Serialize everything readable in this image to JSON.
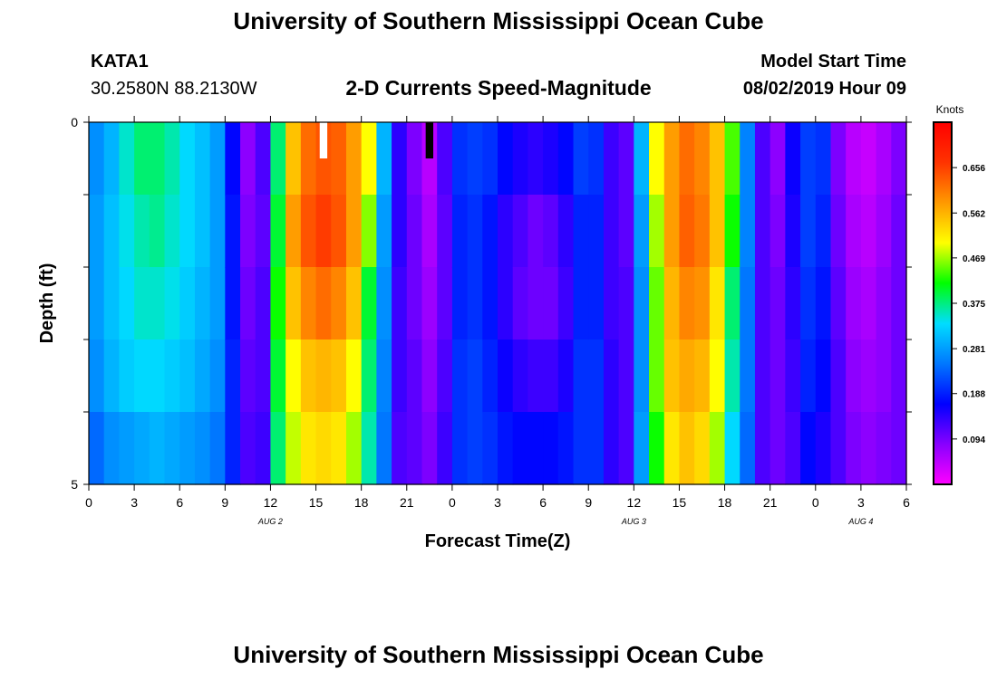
{
  "header": {
    "title": "University of Southern Mississippi Ocean Cube",
    "station": "KATA1",
    "coords": "30.2580N 88.2130W",
    "subtitle": "2-D Currents Speed-Magnitude",
    "model_label": "Model Start Time",
    "model_time": "08/02/2019 Hour 09"
  },
  "footer": {
    "title": "University of Southern Mississippi Ocean Cube"
  },
  "colors": {
    "scale": [
      "#ff00ff",
      "#8800ff",
      "#0000ff",
      "#0077ff",
      "#00ddff",
      "#00ff00",
      "#ffff00",
      "#ff9900",
      "#ff3300",
      "#ff0000"
    ],
    "missing_white": "#ffffff",
    "missing_black": "#000000"
  },
  "chart_data": {
    "type": "heatmap",
    "title": "2-D Currents Speed-Magnitude",
    "xlabel": "Forecast Time(Z)",
    "ylabel": "Depth (ft)",
    "x_tick_labels": [
      "0",
      "3",
      "6",
      "9",
      "12",
      "15",
      "18",
      "21",
      "0",
      "3",
      "6",
      "9",
      "12",
      "15",
      "18",
      "21",
      "0",
      "3",
      "6"
    ],
    "date_labels": [
      {
        "text": "AUG 2",
        "hour": 12
      },
      {
        "text": "AUG 3",
        "hour": 36
      },
      {
        "text": "AUG 4",
        "hour": 51
      }
    ],
    "y_tick_labels": [
      "0",
      "5"
    ],
    "xlim": [
      0,
      54
    ],
    "ylim": [
      0,
      5
    ],
    "depth_levels": [
      0,
      1,
      2,
      3,
      4,
      5
    ],
    "colorbar": {
      "unit": "Knots",
      "min": 0.0,
      "max": 0.75,
      "tick_labels": [
        "0.656",
        "0.562",
        "0.469",
        "0.375",
        "0.281",
        "0.188",
        "0.094"
      ]
    },
    "missing_cells": [
      {
        "hour": 15,
        "depth_index": 0,
        "color": "white"
      },
      {
        "hour": 22,
        "depth_index": 0,
        "color": "black"
      }
    ],
    "speed_by_hour": [
      [
        0,
        0.27,
        0.28,
        0.28,
        0.27,
        0.24
      ],
      [
        1,
        0.3,
        0.31,
        0.31,
        0.3,
        0.27
      ],
      [
        2,
        0.35,
        0.34,
        0.33,
        0.32,
        0.28
      ],
      [
        3,
        0.38,
        0.36,
        0.35,
        0.33,
        0.29
      ],
      [
        4,
        0.38,
        0.37,
        0.35,
        0.33,
        0.3
      ],
      [
        5,
        0.36,
        0.35,
        0.34,
        0.32,
        0.29
      ],
      [
        6,
        0.33,
        0.33,
        0.32,
        0.31,
        0.28
      ],
      [
        7,
        0.31,
        0.31,
        0.3,
        0.29,
        0.27
      ],
      [
        8,
        0.28,
        0.28,
        0.28,
        0.27,
        0.25
      ],
      [
        9,
        0.17,
        0.18,
        0.18,
        0.19,
        0.19
      ],
      [
        10,
        0.08,
        0.09,
        0.1,
        0.11,
        0.12
      ],
      [
        11,
        0.12,
        0.11,
        0.12,
        0.12,
        0.13
      ],
      [
        12,
        0.38,
        0.4,
        0.42,
        0.4,
        0.38
      ],
      [
        13,
        0.55,
        0.58,
        0.55,
        0.5,
        0.48
      ],
      [
        14,
        0.62,
        0.64,
        0.6,
        0.55,
        0.52
      ],
      [
        15,
        0.64,
        0.66,
        0.62,
        0.56,
        0.53
      ],
      [
        16,
        0.63,
        0.64,
        0.6,
        0.55,
        0.52
      ],
      [
        17,
        0.58,
        0.58,
        0.55,
        0.5,
        0.47
      ],
      [
        18,
        0.5,
        0.46,
        0.4,
        0.38,
        0.36
      ],
      [
        19,
        0.3,
        0.28,
        0.27,
        0.26,
        0.25
      ],
      [
        20,
        0.14,
        0.14,
        0.13,
        0.13,
        0.12
      ],
      [
        21,
        0.09,
        0.1,
        0.1,
        0.11,
        0.11
      ],
      [
        22,
        0.05,
        0.06,
        0.07,
        0.08,
        0.09
      ],
      [
        23,
        0.12,
        0.11,
        0.11,
        0.12,
        0.13
      ],
      [
        24,
        0.2,
        0.19,
        0.19,
        0.2,
        0.2
      ],
      [
        25,
        0.21,
        0.2,
        0.2,
        0.21,
        0.21
      ],
      [
        26,
        0.2,
        0.18,
        0.18,
        0.19,
        0.2
      ],
      [
        27,
        0.17,
        0.14,
        0.14,
        0.16,
        0.18
      ],
      [
        28,
        0.15,
        0.12,
        0.11,
        0.14,
        0.17
      ],
      [
        29,
        0.14,
        0.1,
        0.1,
        0.13,
        0.17
      ],
      [
        30,
        0.15,
        0.11,
        0.1,
        0.13,
        0.17
      ],
      [
        31,
        0.17,
        0.14,
        0.13,
        0.15,
        0.18
      ],
      [
        32,
        0.21,
        0.19,
        0.19,
        0.2,
        0.2
      ],
      [
        33,
        0.2,
        0.19,
        0.19,
        0.2,
        0.2
      ],
      [
        34,
        0.13,
        0.13,
        0.13,
        0.14,
        0.14
      ],
      [
        35,
        0.11,
        0.11,
        0.12,
        0.12,
        0.12
      ],
      [
        36,
        0.3,
        0.28,
        0.27,
        0.27,
        0.28
      ],
      [
        37,
        0.5,
        0.47,
        0.45,
        0.45,
        0.42
      ],
      [
        38,
        0.58,
        0.58,
        0.56,
        0.55,
        0.52
      ],
      [
        39,
        0.62,
        0.63,
        0.6,
        0.57,
        0.55
      ],
      [
        40,
        0.6,
        0.61,
        0.59,
        0.56,
        0.53
      ],
      [
        41,
        0.55,
        0.55,
        0.52,
        0.5,
        0.47
      ],
      [
        42,
        0.44,
        0.42,
        0.38,
        0.36,
        0.33
      ],
      [
        43,
        0.26,
        0.26,
        0.25,
        0.25,
        0.24
      ],
      [
        44,
        0.12,
        0.12,
        0.12,
        0.12,
        0.12
      ],
      [
        45,
        0.08,
        0.09,
        0.1,
        0.1,
        0.1
      ],
      [
        46,
        0.16,
        0.15,
        0.14,
        0.13,
        0.12
      ],
      [
        47,
        0.21,
        0.21,
        0.2,
        0.19,
        0.17
      ],
      [
        48,
        0.2,
        0.19,
        0.18,
        0.17,
        0.15
      ],
      [
        49,
        0.09,
        0.1,
        0.11,
        0.12,
        0.12
      ],
      [
        50,
        0.05,
        0.06,
        0.07,
        0.08,
        0.09
      ],
      [
        51,
        0.04,
        0.05,
        0.06,
        0.07,
        0.08
      ],
      [
        52,
        0.06,
        0.07,
        0.08,
        0.08,
        0.09
      ],
      [
        53,
        0.09,
        0.1,
        0.1,
        0.1,
        0.1
      ]
    ]
  }
}
